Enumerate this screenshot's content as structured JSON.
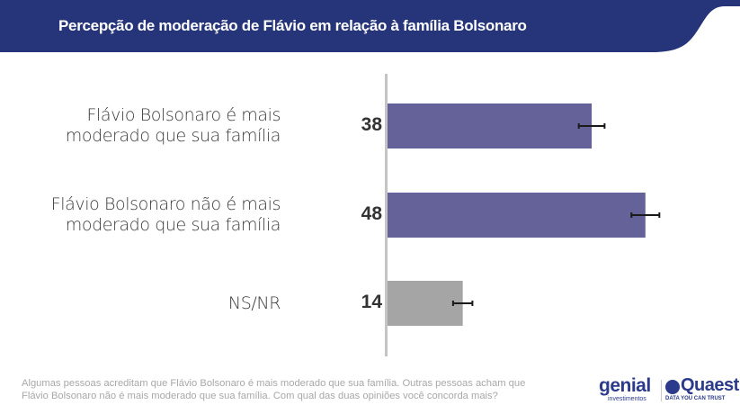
{
  "header": {
    "title": "Percepção de moderação de Flávio em relação à família Bolsonaro",
    "color": "#26357A"
  },
  "chart_data": {
    "type": "bar",
    "orientation": "horizontal",
    "title": "Percepção de moderação de Flávio em relação à família Bolsonaro",
    "categories": [
      "Flávio Bolsonaro é mais moderado que sua família",
      "Flávio Bolsonaro não é mais moderado que sua família",
      "NS/NR"
    ],
    "category_lines": [
      [
        "Flávio Bolsonaro é mais",
        "moderado que sua família"
      ],
      [
        "Flávio Bolsonaro não é mais",
        "moderado que sua família"
      ],
      [
        "NS/NR"
      ]
    ],
    "values": [
      38,
      48,
      14
    ],
    "value_labels": [
      "38",
      "48",
      "14"
    ],
    "error_margins": [
      2.4,
      2.6,
      1.8
    ],
    "colors": [
      "#65629A",
      "#65629A",
      "#A5A5A5"
    ],
    "xlim": [
      0,
      65
    ],
    "xlabel": "",
    "ylabel": "",
    "grid": false
  },
  "footnote": {
    "lines": [
      "Algumas pessoas acreditam que Flávio Bolsonaro é mais moderado que sua família. Outras pessoas acham que",
      "Flávio Bolsonaro não é mais moderado que sua família. Com qual das duas opiniões você concorda mais?"
    ]
  },
  "logos": {
    "genial": {
      "name": "genial",
      "subtitle": "investimentos"
    },
    "quaest": {
      "name": "Quaest",
      "tagline": "DATA YOU CAN TRUST"
    }
  }
}
